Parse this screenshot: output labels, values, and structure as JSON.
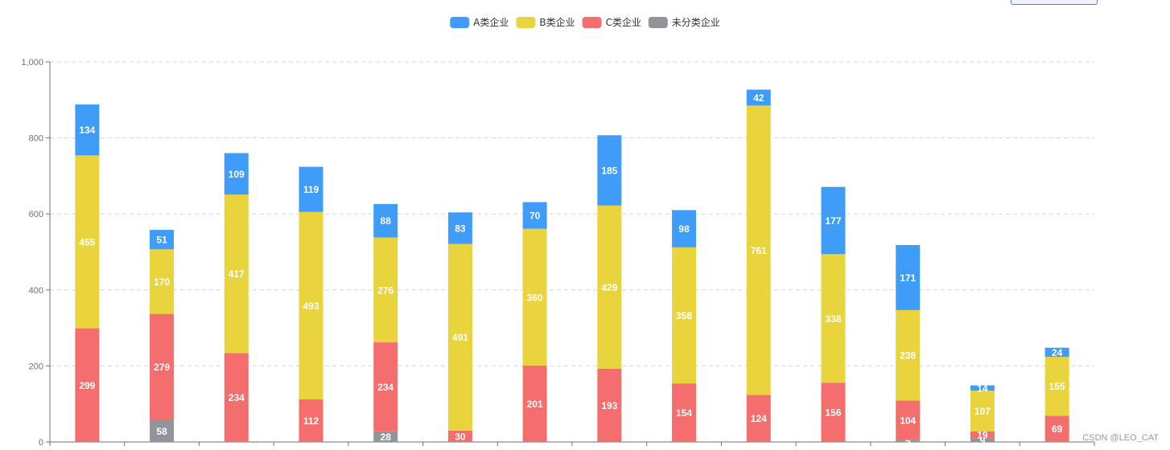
{
  "chart_data": {
    "type": "bar",
    "stacked": true,
    "categories": [
      "",
      "",
      "",
      "",
      "",
      "",
      "",
      "",
      "",
      "",
      "",
      "",
      "",
      ""
    ],
    "series": [
      {
        "name": "未分类企业",
        "color": "#91949b",
        "values": [
          0,
          58,
          0,
          0,
          28,
          0,
          0,
          0,
          0,
          0,
          0,
          5,
          9,
          0
        ]
      },
      {
        "name": "C类企业",
        "color": "#f46e6e",
        "values": [
          299,
          279,
          234,
          112,
          234,
          30,
          201,
          193,
          154,
          124,
          156,
          104,
          19,
          69
        ]
      },
      {
        "name": "B类企业",
        "color": "#e9d43d",
        "values": [
          455,
          170,
          417,
          493,
          276,
          491,
          360,
          429,
          358,
          761,
          338,
          238,
          107,
          155
        ]
      },
      {
        "name": "A类企业",
        "color": "#3f9cf8",
        "values": [
          134,
          51,
          109,
          119,
          88,
          83,
          70,
          185,
          98,
          42,
          177,
          171,
          14,
          24
        ]
      }
    ],
    "legend_order": [
      "A类企业",
      "B类企业",
      "C类企业",
      "未分类企业"
    ],
    "y_ticks": [
      "0",
      "200",
      "400",
      "600",
      "800",
      "1,000"
    ],
    "ylim": [
      0,
      1000
    ],
    "grid": "dashed-horizontal",
    "legend_position": "top-center"
  },
  "watermark": "CSDN @LEO_CAT"
}
